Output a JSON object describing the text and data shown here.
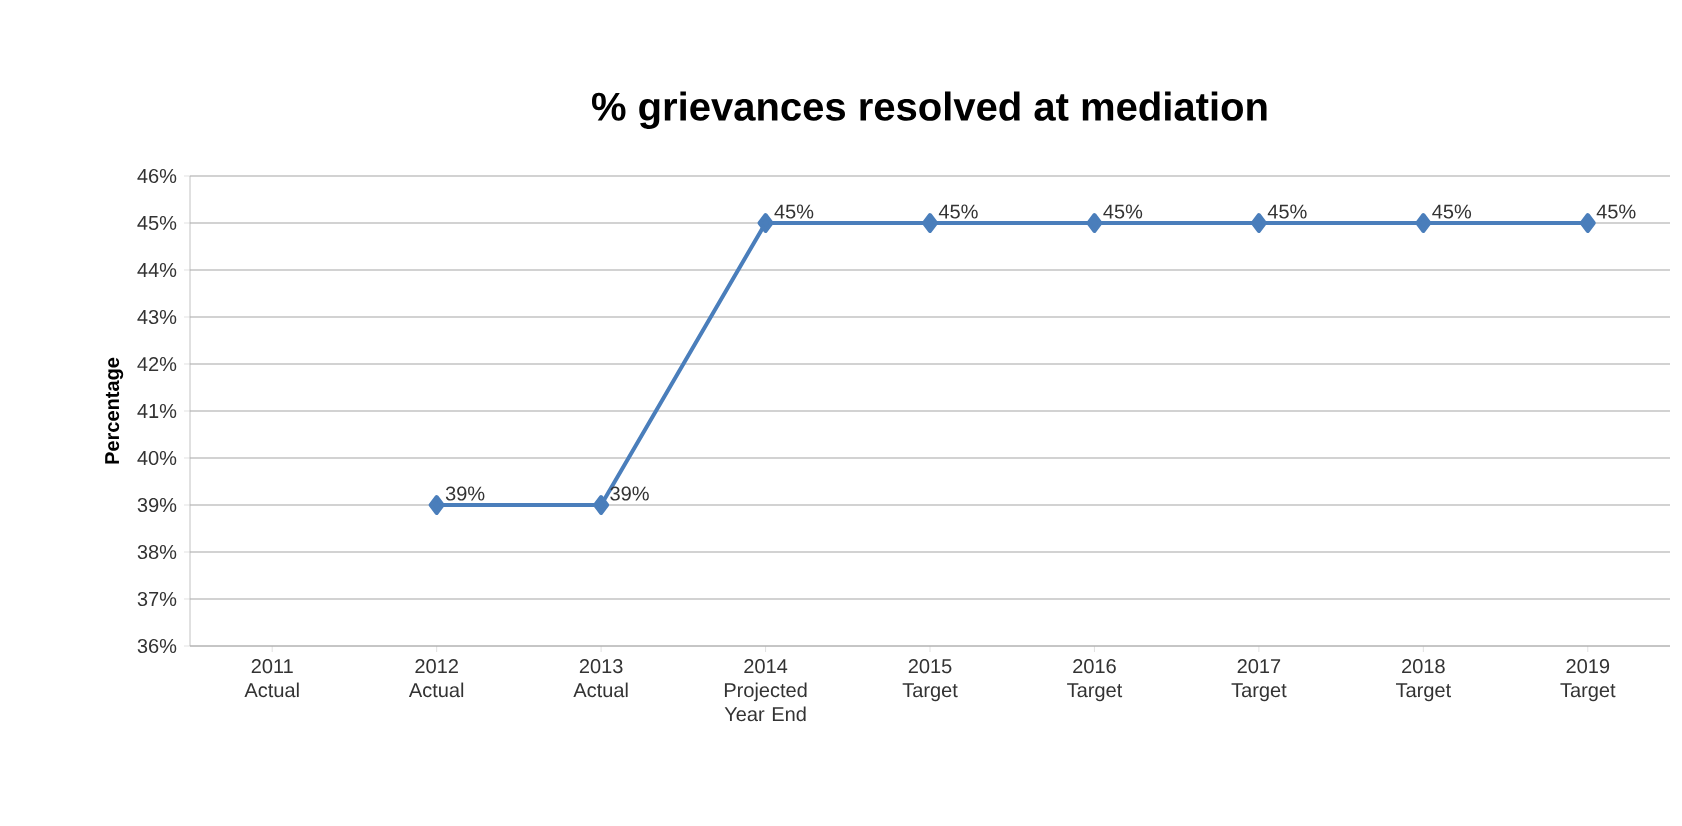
{
  "chart_data": {
    "type": "line",
    "title": "% grievances resolved at mediation",
    "ylabel": "Percentage",
    "categories": [
      "2011 Actual",
      "2012 Actual",
      "2013 Actual",
      "2014 Projected Year End",
      "2015 Target",
      "2016 Target",
      "2017 Target",
      "2018 Target",
      "2019 Target"
    ],
    "series": [
      {
        "color": "#4a7ebb",
        "values": [
          null,
          39,
          39,
          45,
          45,
          45,
          45,
          45,
          45
        ],
        "value_labels": [
          null,
          "39%",
          "39%",
          "45%",
          "45%",
          "45%",
          "45%",
          "45%",
          "45%"
        ]
      }
    ],
    "ylim": [
      36,
      46
    ],
    "yticks": [
      {
        "value": 36,
        "label": "36%"
      },
      {
        "value": 37,
        "label": "37%"
      },
      {
        "value": 38,
        "label": "38%"
      },
      {
        "value": 39,
        "label": "39%"
      },
      {
        "value": 40,
        "label": "40%"
      },
      {
        "value": 41,
        "label": "41%"
      },
      {
        "value": 42,
        "label": "42%"
      },
      {
        "value": 43,
        "label": "43%"
      },
      {
        "value": 44,
        "label": "44%"
      },
      {
        "value": 45,
        "label": "45%"
      },
      {
        "value": 46,
        "label": "46%"
      }
    ],
    "grid": "y",
    "marker": "diamond",
    "line_style": "solid"
  }
}
